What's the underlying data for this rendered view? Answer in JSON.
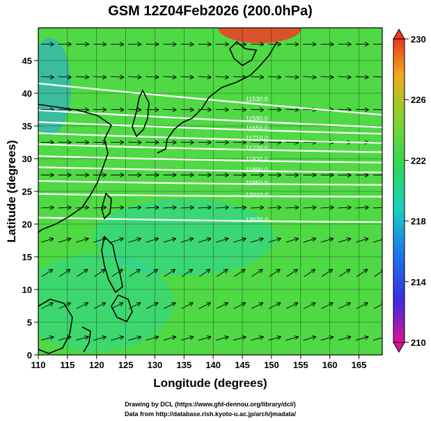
{
  "chart_data": {
    "type": "heatmap",
    "title": "GSM 12Z04Feb2026 (200.0hPa)",
    "xlabel": "Longitude (degrees)",
    "ylabel": "Latitude (degrees)",
    "xlim": [
      110,
      169
    ],
    "ylim": [
      0,
      50
    ],
    "x_ticks": [
      "110",
      "115",
      "120",
      "125",
      "130",
      "135",
      "140",
      "145",
      "150",
      "155",
      "160",
      "165"
    ],
    "y_ticks": [
      "0",
      "5",
      "10",
      "15",
      "20",
      "25",
      "30",
      "35",
      "40",
      "45"
    ],
    "colorbar": {
      "min": 210,
      "max": 230,
      "tick_labels": [
        "230",
        "226",
        "222",
        "218",
        "214",
        "210"
      ],
      "colors": [
        "#e0109a",
        "#3a2ee0",
        "#1c7be8",
        "#16d2c2",
        "#2fd65a",
        "#8ad22c",
        "#f3a81e",
        "#e93a1e"
      ]
    },
    "field_colors": {
      "warm_north": "#e8442a",
      "green": "#4fd944",
      "cyan": "#24d4b0",
      "blue_west": "#2aa6e8"
    },
    "contours": [
      {
        "label": "11530.0",
        "lat_west": 41.5,
        "lat_east": 36.7
      },
      {
        "label": "11590.0",
        "lat_west": 37.4,
        "lat_east": 34.8
      },
      {
        "label": "11650.0",
        "lat_west": 35.6,
        "lat_east": 33.8
      },
      {
        "label": "11710.0",
        "lat_west": 33.9,
        "lat_east": 32.4
      },
      {
        "label": "11770.0",
        "lat_west": 32.2,
        "lat_east": 31.0
      },
      {
        "label": "11830.0",
        "lat_west": 30.4,
        "lat_east": 29.4
      },
      {
        "label": "11890.0",
        "lat_west": 28.7,
        "lat_east": 27.9
      },
      {
        "label": "11950.0",
        "lat_west": 26.6,
        "lat_east": 26.0
      },
      {
        "label": "12010.0",
        "lat_west": 24.6,
        "lat_east": 24.2
      },
      {
        "label": "12070.0",
        "lat_west": 21.0,
        "lat_east": 20.3
      }
    ],
    "flow": [
      {
        "lat": 47.5,
        "u": 1.0,
        "v": -0.02
      },
      {
        "lat": 42.5,
        "u": 1.0,
        "v": -0.06
      },
      {
        "lat": 37.5,
        "u": 1.0,
        "v": -0.04
      },
      {
        "lat": 32.5,
        "u": 1.0,
        "v": -0.02
      },
      {
        "lat": 27.5,
        "u": 1.0,
        "v": 0.0
      },
      {
        "lat": 22.5,
        "u": 1.0,
        "v": 0.05
      },
      {
        "lat": 17.5,
        "u": 0.8,
        "v": 0.25
      },
      {
        "lat": 12.5,
        "u": 0.6,
        "v": 0.4
      },
      {
        "lat": 7.5,
        "u": 0.7,
        "v": 0.35
      },
      {
        "lat": 2.5,
        "u": 0.9,
        "v": 0.25
      }
    ],
    "credits": [
      "Drawing by DCL (https://www.gfd-dennou.org/library/dcl/)",
      "Data from http://database.rish.kyoto-u.ac.jp/arch/jmadata/"
    ]
  }
}
